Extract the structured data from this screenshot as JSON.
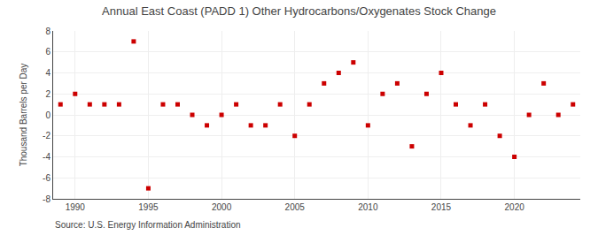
{
  "chart_data": {
    "type": "scatter",
    "title": "Annual East Coast (PADD 1) Other Hydrocarbons/Oxygenates Stock Change",
    "ylabel": "Thousand Barrels per Day",
    "annotations": [
      "Source: U.S. Energy Information Administration"
    ],
    "x": [
      1989,
      1990,
      1991,
      1992,
      1993,
      1994,
      1995,
      1996,
      1997,
      1998,
      1999,
      2000,
      2001,
      2002,
      2003,
      2004,
      2005,
      2006,
      2007,
      2008,
      2009,
      2010,
      2011,
      2012,
      2013,
      2014,
      2015,
      2016,
      2017,
      2018,
      2019,
      2020,
      2021,
      2022,
      2023,
      2024
    ],
    "values": [
      1,
      2,
      1,
      1,
      1,
      7,
      -7,
      1,
      1,
      0,
      -1,
      0,
      1,
      -1,
      -1,
      1,
      -2,
      1,
      3,
      4,
      5,
      -1,
      2,
      3,
      -3,
      2,
      4,
      1,
      -1,
      1,
      -2,
      -4,
      0,
      3,
      0,
      1
    ],
    "color": "#cc0000",
    "marker": "square",
    "xlim": [
      1988.5,
      2024.5
    ],
    "xticks": [
      1990,
      1995,
      2000,
      2005,
      2010,
      2015,
      2020
    ],
    "ylim": [
      -8,
      8
    ],
    "yticks": [
      -8,
      -6,
      -4,
      -2,
      0,
      2,
      4,
      6,
      8
    ],
    "grid": true
  }
}
